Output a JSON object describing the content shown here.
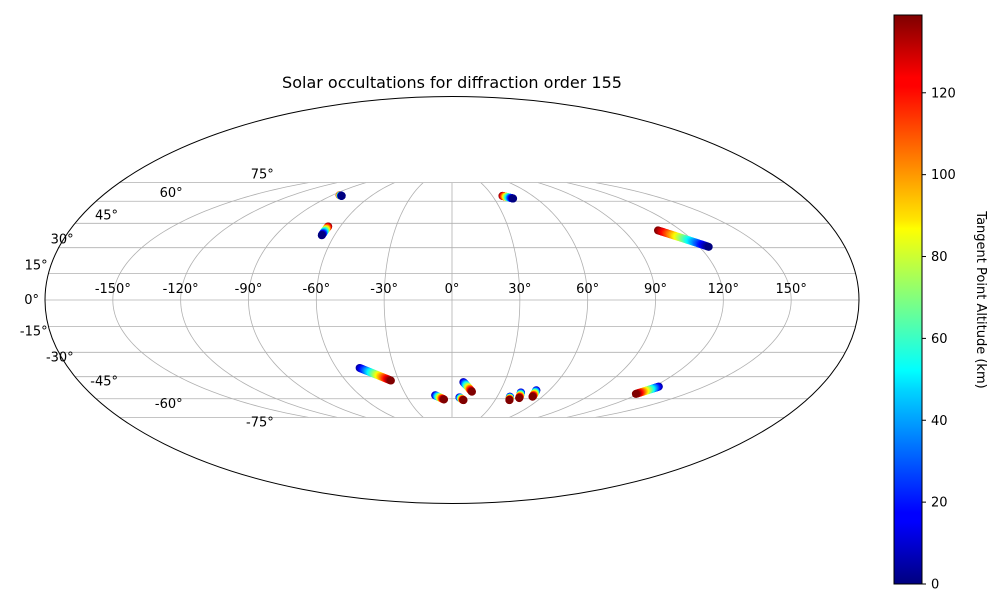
{
  "chart_data": {
    "type": "scatter",
    "projection": "mollweide",
    "title": "Solar occultations for diffraction order 155",
    "grid": true,
    "lon_ticks": [
      -150,
      -120,
      -90,
      -60,
      -30,
      0,
      30,
      60,
      90,
      120,
      150
    ],
    "lon_tick_labels": [
      "-150°",
      "-120°",
      "-90°",
      "-60°",
      "-30°",
      "0°",
      "30°",
      "60°",
      "90°",
      "120°",
      "150°"
    ],
    "lat_ticks": [
      75,
      60,
      45,
      30,
      15,
      0,
      -15,
      -30,
      -45,
      -60,
      -75
    ],
    "lat_tick_labels": [
      "75°",
      "60°",
      "45°",
      "30°",
      "15°",
      "0°",
      "-15°",
      "-30°",
      "-45°",
      "-60°",
      "-75°"
    ],
    "colorbar": {
      "label": "Tangent Point Altitude (km)",
      "colormap": "jet",
      "range": [
        0,
        139
      ],
      "ticks": [
        0,
        20,
        40,
        60,
        80,
        100,
        120
      ],
      "tick_labels": [
        "0",
        "20",
        "40",
        "60",
        "80",
        "100",
        "120"
      ]
    },
    "tracks": [
      {
        "start": [
          -84.5,
          64.5
        ],
        "end": [
          -82,
          64.0
        ],
        "alt_start": 130,
        "alt_end": 0
      },
      {
        "start": [
          -66.5,
          43.0
        ],
        "end": [
          -66.5,
          37.5
        ],
        "alt_start": 139,
        "alt_end": 0
      },
      {
        "start": [
          37.5,
          64.0
        ],
        "end": [
          43.5,
          62.0
        ],
        "alt_start": 139,
        "alt_end": 0
      },
      {
        "start": [
          108,
          40.5
        ],
        "end": [
          124.5,
          30.5
        ],
        "alt_start": 139,
        "alt_end": 0
      },
      {
        "start": [
          -48,
          -39.5
        ],
        "end": [
          -34.5,
          -47.5
        ],
        "alt_start": 5,
        "alt_end": 139
      },
      {
        "start": [
          -11,
          -57.5
        ],
        "end": [
          -5.5,
          -60.5
        ],
        "alt_start": 5,
        "alt_end": 139
      },
      {
        "start": [
          6.5,
          -48.5
        ],
        "end": [
          12.5,
          -55.0
        ],
        "alt_start": 5,
        "alt_end": 139
      },
      {
        "start": [
          5.0,
          -59.0
        ],
        "end": [
          8.0,
          -61.0
        ],
        "alt_start": 5,
        "alt_end": 139
      },
      {
        "start": [
          38.5,
          -58.5
        ],
        "end": [
          40.0,
          -61.0
        ],
        "alt_start": 5,
        "alt_end": 139
      },
      {
        "start": [
          43.5,
          -55.5
        ],
        "end": [
          45.5,
          -59.5
        ],
        "alt_start": 5,
        "alt_end": 139
      },
      {
        "start": [
          52.0,
          -54.0
        ],
        "end": [
          53.5,
          -58.5
        ],
        "alt_start": 5,
        "alt_end": 139
      },
      {
        "start": [
          123,
          -51.5
        ],
        "end": [
          118,
          -56.5
        ],
        "alt_start": 5,
        "alt_end": 139
      }
    ]
  }
}
